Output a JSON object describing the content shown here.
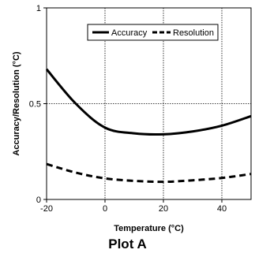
{
  "chart_data": {
    "type": "line",
    "title": "",
    "xlabel": "Temperature  (°C)",
    "ylabel": "Accuracy/Resolution  (°C)",
    "xlim": [
      -20,
      50
    ],
    "ylim": [
      0,
      1
    ],
    "x_ticks": [
      "-20",
      "0",
      "20",
      "40"
    ],
    "x_tick_values": [
      -20,
      0,
      20,
      40
    ],
    "y_ticks": [
      "0",
      "0.5",
      "1"
    ],
    "y_tick_values": [
      0,
      0.5,
      1
    ],
    "grid": "x-major-dotted, y-0.5-dotted",
    "legend_position": "top-right",
    "series": [
      {
        "name": "Accuracy",
        "style": "solid",
        "color": "#000000",
        "x": [
          -20,
          -10,
          0,
          10,
          20,
          30,
          40,
          50
        ],
        "y": [
          0.68,
          0.5,
          0.375,
          0.345,
          0.34,
          0.355,
          0.385,
          0.435
        ]
      },
      {
        "name": "Resolution",
        "style": "dashed",
        "color": "#000000",
        "x": [
          -20,
          -10,
          0,
          10,
          20,
          30,
          40,
          50
        ],
        "y": [
          0.185,
          0.14,
          0.11,
          0.097,
          0.092,
          0.1,
          0.112,
          0.133
        ]
      }
    ]
  },
  "caption": "Plot A"
}
